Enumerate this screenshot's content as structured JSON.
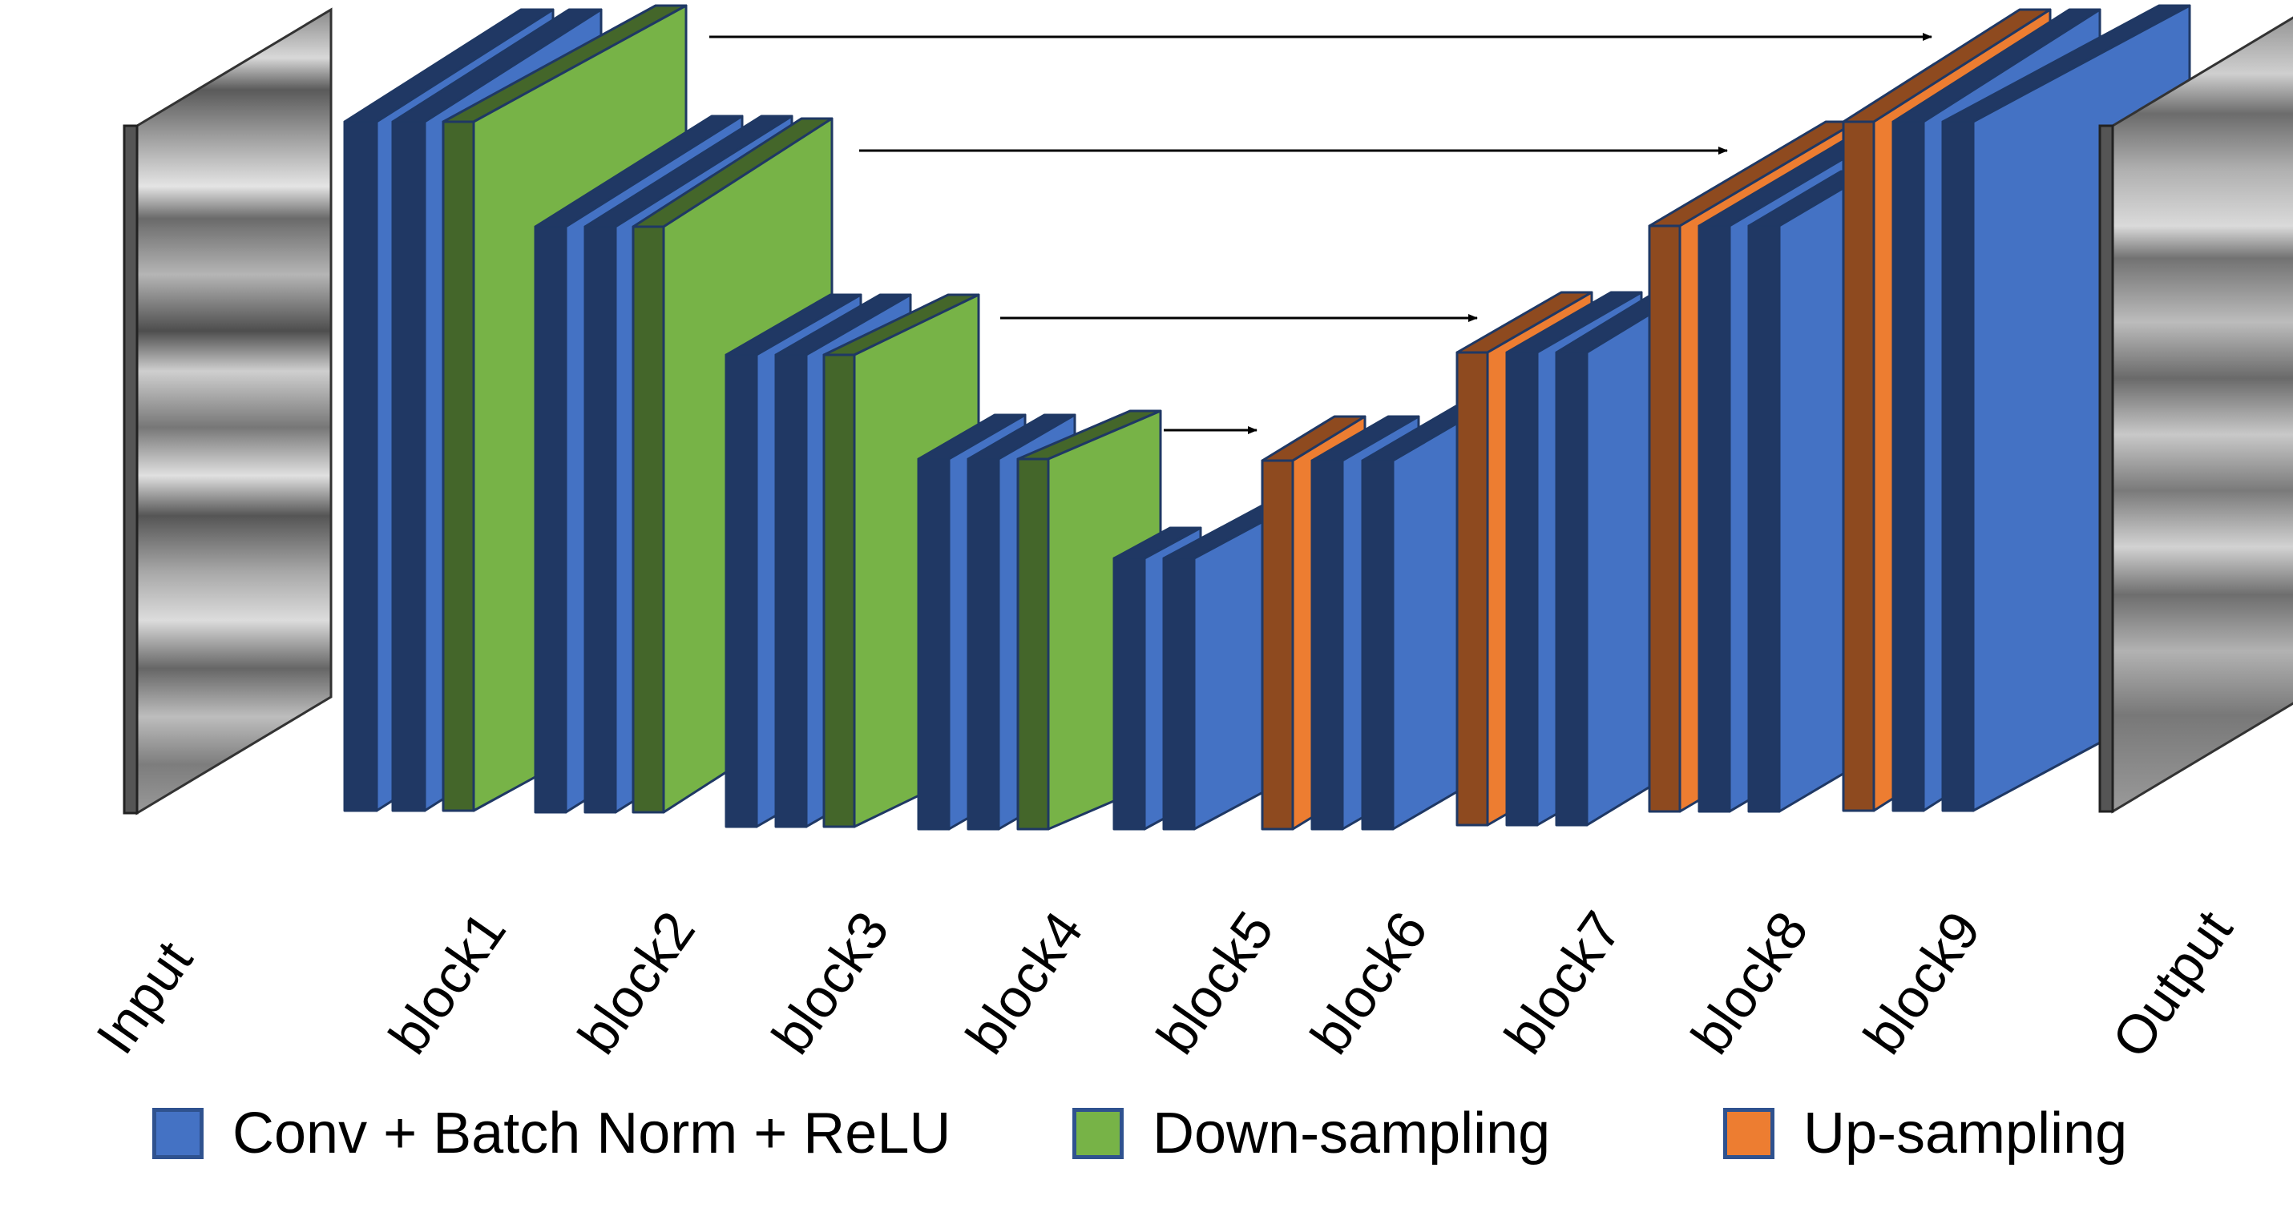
{
  "figure": {
    "labels": {
      "input": "Input",
      "block1": "block1",
      "block2": "block2",
      "block3": "block3",
      "block4": "block4",
      "block5": "block5",
      "block6": "block6",
      "block7": "block7",
      "block8": "block8",
      "block9": "block9",
      "output": "Output"
    },
    "legend": {
      "conv": "Conv + Batch Norm + ReLU",
      "down": "Down-sampling",
      "up": "Up-sampling"
    },
    "colors": {
      "conv_front": "#203864",
      "conv_side": "#4472c4",
      "down_front": "#44662a",
      "down_side": "#77b347",
      "up_front": "#8e4a1f",
      "up_side": "#ed7d31",
      "outline": "#1f3864",
      "arrow": "#000000",
      "seismic_gray": "#888888"
    }
  }
}
